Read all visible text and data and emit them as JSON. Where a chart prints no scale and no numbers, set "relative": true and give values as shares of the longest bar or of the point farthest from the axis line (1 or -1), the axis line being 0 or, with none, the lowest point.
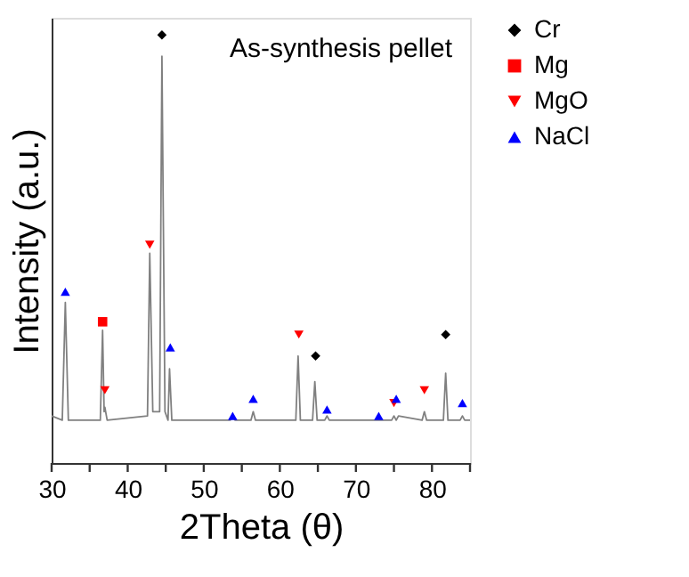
{
  "chart_data": {
    "type": "line",
    "relative": true,
    "xlabel": "2Theta (θ)",
    "ylabel": "Intensity (a.u.)",
    "xlim": [
      30,
      85
    ],
    "xticks": [
      30,
      {
        "value": 35,
        "label": null
      },
      40,
      {
        "value": 45,
        "label": null
      },
      50,
      {
        "value": 55,
        "label": null
      },
      60,
      {
        "value": 65,
        "label": null
      },
      70,
      {
        "value": 75,
        "label": null
      },
      80,
      {
        "value": 85,
        "label": null
      }
    ],
    "annotations": [
      "As-synthesis pellet"
    ],
    "legend": "top right",
    "grid": false,
    "series": [
      {
        "color": "#808080",
        "marker": "none",
        "x": [
          30,
          31.4,
          31.8,
          32.2,
          36.4,
          36.7,
          36.9,
          37.0,
          37.3,
          42.6,
          42.9,
          43.3,
          44.2,
          44.5,
          44.9,
          45.3,
          45.5,
          45.8,
          53.5,
          53.8,
          54.1,
          56.2,
          56.5,
          56.8,
          62.1,
          62.4,
          62.7,
          64.3,
          64.6,
          64.9,
          65.9,
          66.2,
          66.5,
          74.7,
          75.0,
          75.3,
          75.6,
          78.7,
          79.0,
          79.3,
          81.5,
          81.8,
          82.1,
          83.7,
          84.0,
          84.3,
          85
        ],
        "values": [
          0.11,
          0.1,
          0.375,
          0.1,
          0.1,
          0.31,
          0.12,
          0.13,
          0.1,
          0.11,
          0.49,
          0.12,
          0.12,
          0.95,
          0.12,
          0.1,
          0.22,
          0.1,
          0.1,
          0.11,
          0.1,
          0.1,
          0.12,
          0.1,
          0.1,
          0.25,
          0.1,
          0.1,
          0.19,
          0.1,
          0.1,
          0.11,
          0.1,
          0.1,
          0.11,
          0.1,
          0.11,
          0.1,
          0.12,
          0.1,
          0.1,
          0.21,
          0.1,
          0.1,
          0.11,
          0.1,
          0.1
        ]
      },
      {
        "type": "scatter",
        "name": "Cr",
        "color": "#000000",
        "marker": "diamond",
        "x": [
          44.5,
          64.7,
          81.8
        ],
        "values": [
          1.0,
          0.25,
          0.3
        ]
      },
      {
        "type": "scatter",
        "name": "Mg",
        "color": "#ff0000",
        "marker": "square",
        "x": [
          36.7
        ],
        "values": [
          0.33
        ]
      },
      {
        "type": "scatter",
        "name": "MgO",
        "color": "#ff0000",
        "marker": "triangle-down",
        "x": [
          37.0,
          42.9,
          62.5,
          75.0,
          79.0
        ],
        "values": [
          0.17,
          0.51,
          0.3,
          0.14,
          0.17
        ]
      },
      {
        "type": "scatter",
        "name": "NaCl",
        "color": "#0000ff",
        "marker": "triangle",
        "x": [
          31.8,
          45.6,
          53.8,
          56.5,
          66.2,
          73.0,
          75.3,
          84.0
        ],
        "values": [
          0.4,
          0.27,
          0.11,
          0.15,
          0.125,
          0.11,
          0.15,
          0.14
        ]
      }
    ]
  }
}
